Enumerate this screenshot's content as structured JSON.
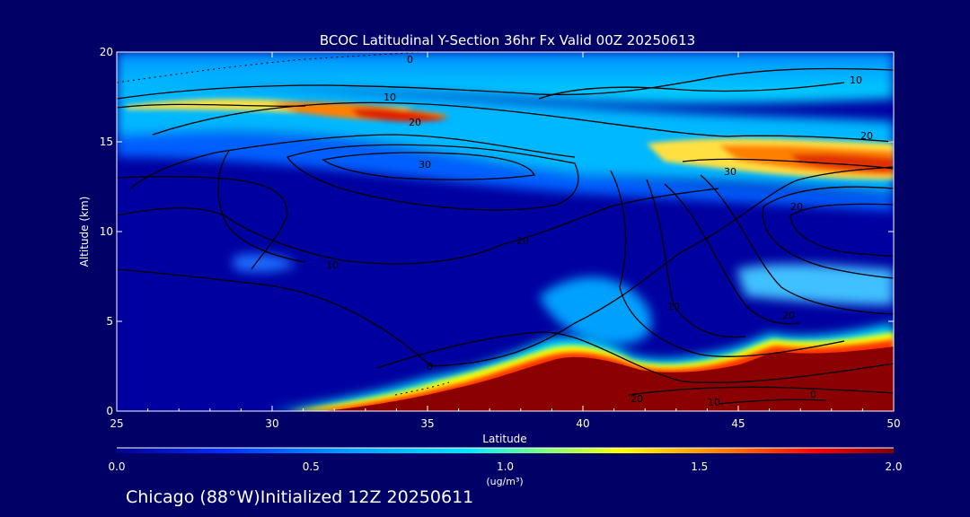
{
  "chart_data": {
    "type": "heatmap",
    "title": "BCOC Latitudinal Y-Section 36hr  Fx Valid 00Z 20250613",
    "xlabel": "Latitude",
    "ylabel": "Altitude (km)",
    "xlim": [
      25,
      50
    ],
    "ylim": [
      0,
      20
    ],
    "x_ticks": [
      "25",
      "30",
      "35",
      "40",
      "45",
      "50"
    ],
    "y_ticks": [
      "0",
      "5",
      "10",
      "15",
      "20"
    ],
    "colorbar": {
      "min": 0.0,
      "max": 2.0,
      "ticks": [
        "0.0",
        "0.5",
        "1.0",
        "1.5",
        "2.0"
      ],
      "units": "(ug/m³)",
      "colormap": [
        "#00008f",
        "#0040ff",
        "#00c8ff",
        "#80ff80",
        "#ffff00",
        "#ff8000",
        "#ff0000",
        "#800000"
      ]
    },
    "contour_labels": [
      "0",
      "10",
      "20",
      "30",
      "20",
      "10",
      "20",
      "30",
      "20",
      "10",
      "0",
      "10",
      "20",
      "0",
      "10",
      "20"
    ],
    "background_color": "#000066"
  },
  "footer": "Chicago (88°W)Initialized 12Z 20250611"
}
